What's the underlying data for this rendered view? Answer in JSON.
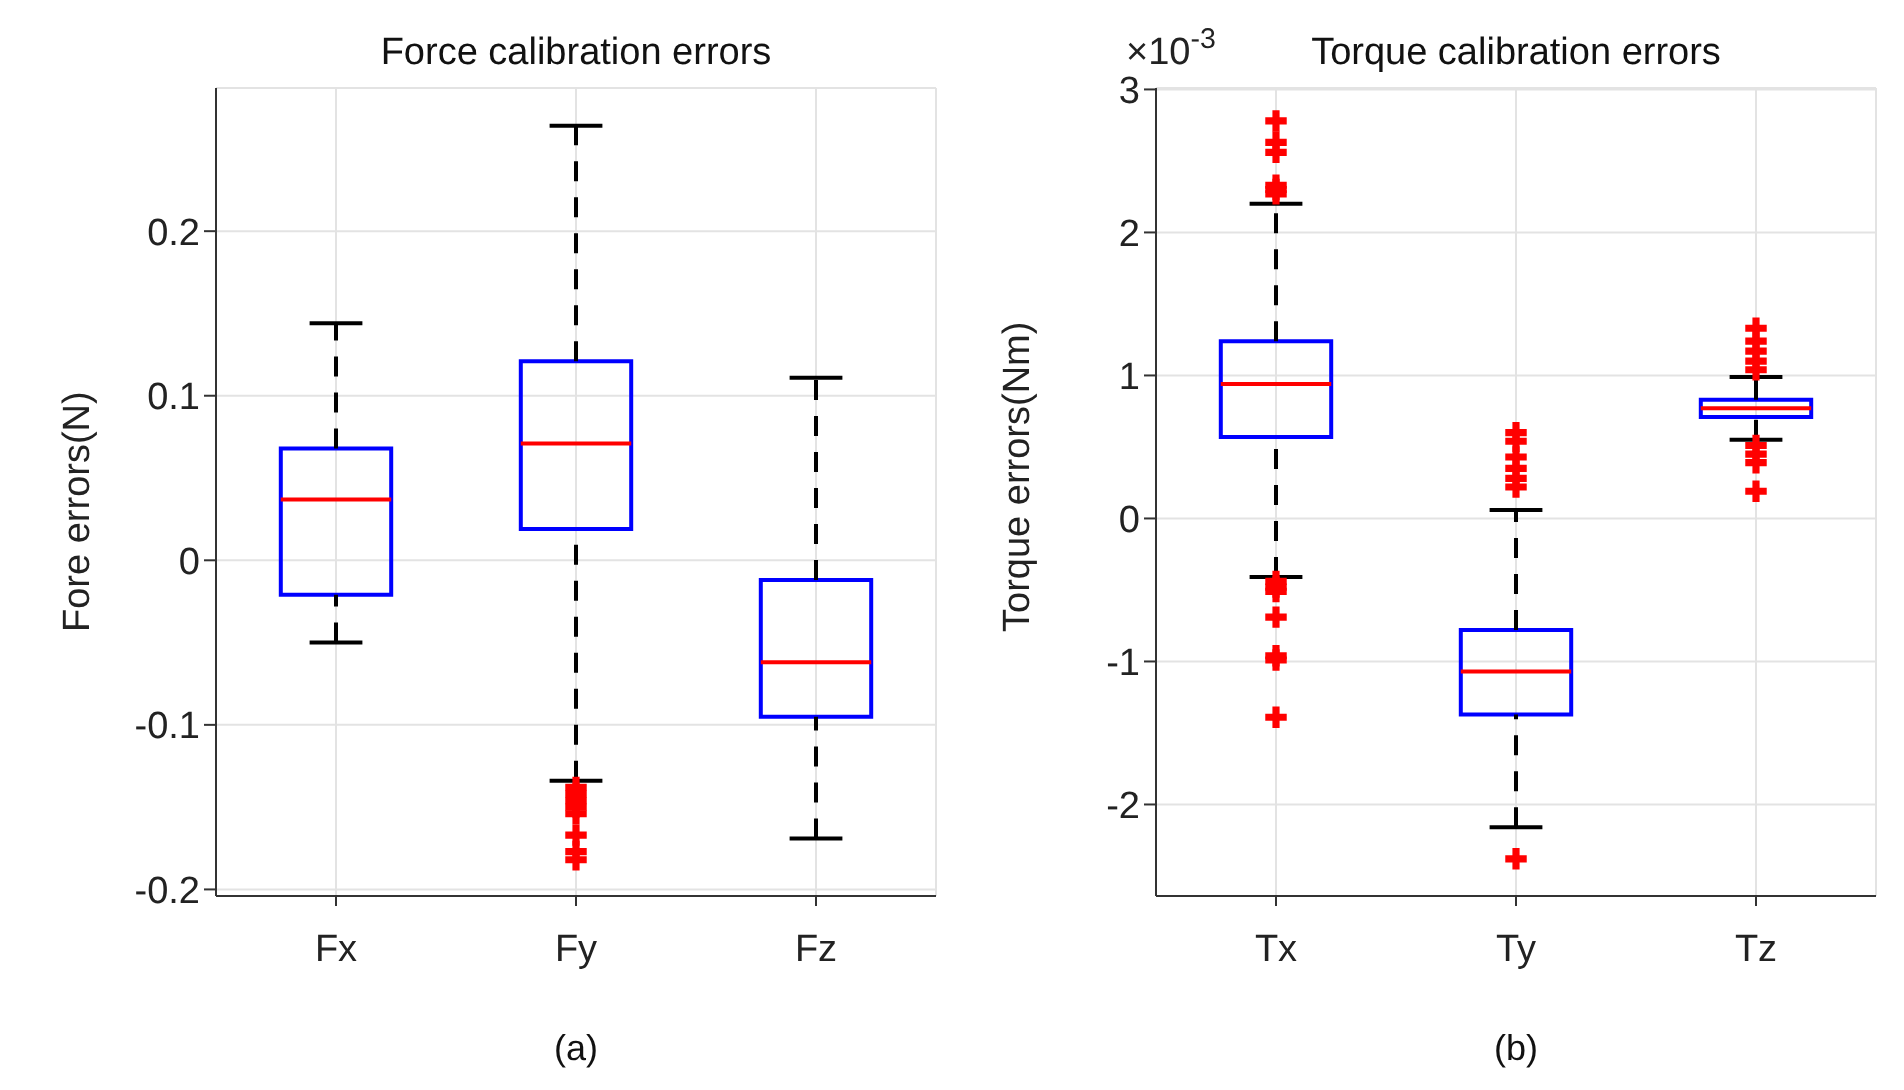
{
  "chart_data": [
    {
      "type": "box",
      "title": "Force calibration errors",
      "ylabel": "Fore errors(N)",
      "annotations": [
        "(a)"
      ],
      "categories": [
        "Fx",
        "Fy",
        "Fz"
      ],
      "color": "#0000ff",
      "grid": true,
      "ylim": [
        -0.204,
        0.287
      ],
      "yticks": [
        -0.2,
        -0.1,
        0,
        0.1,
        0.2
      ],
      "boxes": [
        {
          "low": -0.05,
          "q1": -0.021,
          "median": 0.037,
          "q3": 0.068,
          "high": 0.144
        },
        {
          "low": -0.134,
          "q1": 0.019,
          "median": 0.071,
          "q3": 0.121,
          "high": 0.264,
          "outliers": [
            -0.138,
            -0.142,
            -0.146,
            -0.15,
            -0.154,
            -0.167,
            -0.177,
            -0.182
          ]
        },
        {
          "low": -0.169,
          "q1": -0.095,
          "median": -0.062,
          "q3": -0.012,
          "high": 0.111
        }
      ]
    },
    {
      "type": "box",
      "title": "Torque calibration errors",
      "ylabel": "Torque errors(Nm)",
      "annotations": [
        "×10$^{-3}$",
        "(b)"
      ],
      "categories": [
        "Tx",
        "Ty",
        "Tz"
      ],
      "color": "#0000ff",
      "grid": true,
      "ylim": [
        -2.64,
        3.01
      ],
      "yticks": [
        -2,
        -1,
        0,
        1,
        2,
        3
      ],
      "boxes": [
        {
          "low": -0.41,
          "q1": 0.57,
          "median": 0.94,
          "q3": 1.24,
          "high": 2.2,
          "outliers": [
            2.78,
            2.63,
            2.56,
            2.33,
            2.3,
            2.27,
            -0.44,
            -0.48,
            -0.51,
            -0.69,
            -0.96,
            -0.99,
            -1.39
          ]
        },
        {
          "low": -2.16,
          "q1": -1.37,
          "median": -1.07,
          "q3": -0.78,
          "high": 0.06,
          "outliers": [
            0.6,
            0.54,
            0.43,
            0.35,
            0.28,
            0.22,
            -2.38
          ]
        },
        {
          "low": 0.55,
          "q1": 0.71,
          "median": 0.77,
          "q3": 0.83,
          "high": 0.99,
          "outliers": [
            1.33,
            1.24,
            1.17,
            1.1,
            1.04,
            0.51,
            0.45,
            0.39,
            0.19
          ]
        }
      ]
    }
  ]
}
